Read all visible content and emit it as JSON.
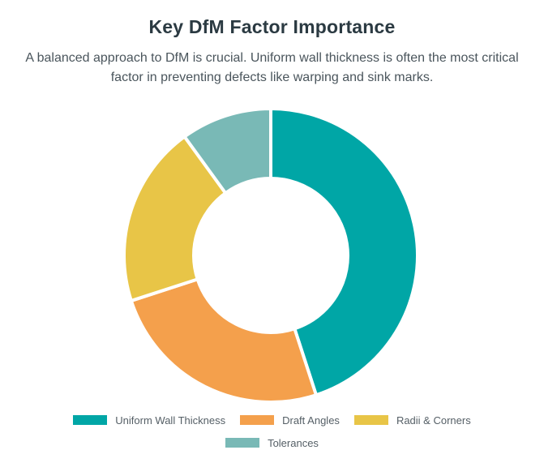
{
  "header": {
    "title": "Key DfM Factor Importance",
    "subtitle": "A balanced approach to DfM is crucial. Uniform wall thickness is often the most critical factor in preventing defects like warping and sink marks."
  },
  "chart_data": {
    "type": "pie",
    "variant": "doughnut",
    "title": "Key DfM Factor Importance",
    "categories": [
      "Uniform Wall Thickness",
      "Draft Angles",
      "Radii & Corners",
      "Tolerances"
    ],
    "values": [
      45,
      25,
      20,
      10
    ],
    "colors": [
      "#00A6A6",
      "#F4A04C",
      "#E8C547",
      "#79B9B6"
    ],
    "legend_position": "bottom"
  }
}
